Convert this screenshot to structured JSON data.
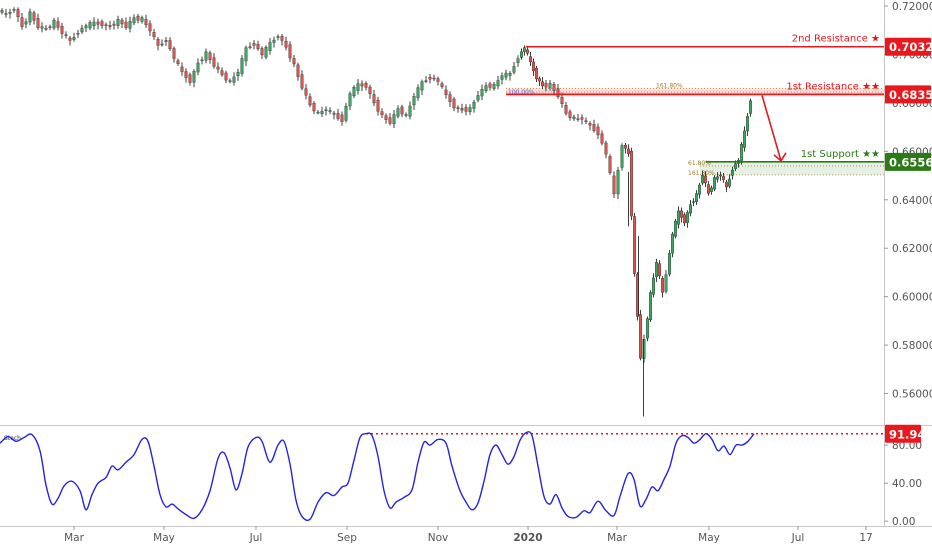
{
  "chart_data": [
    {
      "type": "candlestick",
      "symbol": "AUDUSD",
      "x_labels": [
        "Mar",
        "May",
        "Jul",
        "Sep",
        "Nov",
        "2020",
        "Mar",
        "May",
        "Jul",
        "17"
      ],
      "y_ticks": [
        0.56,
        0.58,
        0.6,
        0.62,
        0.64,
        0.66,
        0.68,
        0.7,
        0.72
      ],
      "y_tick_labels": [
        "0.56000",
        "0.58000",
        "0.60000",
        "0.62000",
        "0.64000",
        "0.66000",
        "0.68000",
        "0.70000",
        "0.72000"
      ],
      "ylim": [
        0.547,
        0.7225
      ],
      "price_path": [
        [
          0,
          0.7185
        ],
        [
          8,
          0.7165
        ],
        [
          16,
          0.719
        ],
        [
          24,
          0.7115
        ],
        [
          32,
          0.717
        ],
        [
          40,
          0.7115
        ],
        [
          48,
          0.7105
        ],
        [
          56,
          0.7135
        ],
        [
          64,
          0.709
        ],
        [
          72,
          0.7055
        ],
        [
          80,
          0.7095
        ],
        [
          88,
          0.712
        ],
        [
          96,
          0.713
        ],
        [
          104,
          0.7125
        ],
        [
          112,
          0.7115
        ],
        [
          120,
          0.714
        ],
        [
          128,
          0.7115
        ],
        [
          136,
          0.715
        ],
        [
          144,
          0.7145
        ],
        [
          152,
          0.71
        ],
        [
          160,
          0.7035
        ],
        [
          168,
          0.706
        ],
        [
          176,
          0.6985
        ],
        [
          184,
          0.6925
        ],
        [
          192,
          0.689
        ],
        [
          200,
          0.6965
        ],
        [
          208,
          0.7005
        ],
        [
          216,
          0.6955
        ],
        [
          224,
          0.6915
        ],
        [
          232,
          0.6885
        ],
        [
          240,
          0.693
        ],
        [
          248,
          0.7025
        ],
        [
          256,
          0.7045
        ],
        [
          264,
          0.7
        ],
        [
          272,
          0.7045
        ],
        [
          280,
          0.708
        ],
        [
          288,
          0.703
        ],
        [
          296,
          0.6955
        ],
        [
          304,
          0.6865
        ],
        [
          312,
          0.679
        ],
        [
          320,
          0.6755
        ],
        [
          328,
          0.6775
        ],
        [
          336,
          0.675
        ],
        [
          344,
          0.673
        ],
        [
          352,
          0.684
        ],
        [
          360,
          0.6875
        ],
        [
          368,
          0.687
        ],
        [
          376,
          0.68
        ],
        [
          384,
          0.6745
        ],
        [
          392,
          0.672
        ],
        [
          400,
          0.6775
        ],
        [
          408,
          0.6745
        ],
        [
          416,
          0.683
        ],
        [
          424,
          0.6885
        ],
        [
          432,
          0.6905
        ],
        [
          440,
          0.689
        ],
        [
          448,
          0.683
        ],
        [
          456,
          0.6785
        ],
        [
          464,
          0.677
        ],
        [
          472,
          0.6775
        ],
        [
          480,
          0.6835
        ],
        [
          488,
          0.687
        ],
        [
          496,
          0.687
        ],
        [
          504,
          0.6915
        ],
        [
          512,
          0.692
        ],
        [
          520,
          0.699
        ],
        [
          526,
          0.703
        ],
        [
          532,
          0.6965
        ],
        [
          538,
          0.6905
        ],
        [
          544,
          0.687
        ],
        [
          552,
          0.6875
        ],
        [
          560,
          0.683
        ],
        [
          568,
          0.6755
        ],
        [
          576,
          0.6735
        ],
        [
          584,
          0.6735
        ],
        [
          592,
          0.6705
        ],
        [
          600,
          0.6675
        ],
        [
          608,
          0.659
        ],
        [
          616,
          0.642
        ],
        [
          624,
          0.663
        ],
        [
          630,
          0.659
        ],
        [
          636,
          0.609
        ],
        [
          642,
          0.575
        ],
        [
          646,
          0.582
        ],
        [
          652,
          0.601
        ],
        [
          658,
          0.6145
        ],
        [
          664,
          0.6015
        ],
        [
          668,
          0.6095
        ],
        [
          674,
          0.626
        ],
        [
          680,
          0.635
        ],
        [
          686,
          0.631
        ],
        [
          692,
          0.638
        ],
        [
          698,
          0.642
        ],
        [
          704,
          0.6505
        ],
        [
          710,
          0.6425
        ],
        [
          716,
          0.6485
        ],
        [
          722,
          0.6505
        ],
        [
          728,
          0.645
        ],
        [
          734,
          0.653
        ],
        [
          740,
          0.6565
        ],
        [
          746,
          0.668
        ],
        [
          752,
          0.6815
        ]
      ],
      "levels": [
        {
          "label": "2nd Resistance ★",
          "value": 0.7032,
          "value_label": "0.70320",
          "color": "#e8181d"
        },
        {
          "label": "1st Resistance ★★",
          "value": 0.68354,
          "value_label": "0.68354",
          "color": "#e8181d"
        },
        {
          "label": "1st Support ★★",
          "value": 0.65568,
          "value_label": "0.65568",
          "color": "#2b7a16"
        }
      ],
      "fib_labels": {
        "top_resistance": "161.80%",
        "resistance_base": "100.00%",
        "support_top": "61.80%",
        "support_bottom": "161.80%"
      },
      "colors": {
        "up": "#3aa75e",
        "down": "#e0534a",
        "wick": "#2a2a2a"
      }
    },
    {
      "type": "line",
      "name": "Stoch",
      "y_ticks": [
        0,
        40,
        80
      ],
      "y_tick_labels": [
        "0.00",
        "40.00",
        "80.00"
      ],
      "ylim": [
        -4,
        98
      ],
      "current_label": "91.94",
      "reference_value": 91.94,
      "points": [
        [
          0,
          82
        ],
        [
          8,
          89
        ],
        [
          16,
          84
        ],
        [
          24,
          88
        ],
        [
          32,
          91
        ],
        [
          40,
          74
        ],
        [
          46,
          38
        ],
        [
          52,
          18
        ],
        [
          58,
          24
        ],
        [
          64,
          37
        ],
        [
          72,
          42
        ],
        [
          80,
          32
        ],
        [
          86,
          12
        ],
        [
          92,
          28
        ],
        [
          98,
          40
        ],
        [
          106,
          46
        ],
        [
          112,
          58
        ],
        [
          118,
          54
        ],
        [
          126,
          62
        ],
        [
          134,
          70
        ],
        [
          142,
          86
        ],
        [
          148,
          84
        ],
        [
          154,
          58
        ],
        [
          160,
          28
        ],
        [
          166,
          15
        ],
        [
          172,
          18
        ],
        [
          178,
          13
        ],
        [
          186,
          7
        ],
        [
          194,
          3
        ],
        [
          202,
          12
        ],
        [
          210,
          32
        ],
        [
          218,
          66
        ],
        [
          224,
          72
        ],
        [
          230,
          56
        ],
        [
          236,
          33
        ],
        [
          242,
          50
        ],
        [
          248,
          78
        ],
        [
          256,
          88
        ],
        [
          262,
          84
        ],
        [
          270,
          62
        ],
        [
          278,
          80
        ],
        [
          284,
          84
        ],
        [
          290,
          60
        ],
        [
          296,
          22
        ],
        [
          302,
          5
        ],
        [
          310,
          2
        ],
        [
          318,
          20
        ],
        [
          326,
          30
        ],
        [
          334,
          27
        ],
        [
          342,
          36
        ],
        [
          348,
          40
        ],
        [
          354,
          64
        ],
        [
          360,
          88
        ],
        [
          366,
          92
        ],
        [
          372,
          90
        ],
        [
          378,
          68
        ],
        [
          384,
          32
        ],
        [
          390,
          14
        ],
        [
          396,
          20
        ],
        [
          404,
          25
        ],
        [
          412,
          33
        ],
        [
          418,
          62
        ],
        [
          424,
          83
        ],
        [
          430,
          80
        ],
        [
          438,
          86
        ],
        [
          446,
          82
        ],
        [
          452,
          58
        ],
        [
          460,
          32
        ],
        [
          466,
          20
        ],
        [
          472,
          12
        ],
        [
          478,
          19
        ],
        [
          484,
          42
        ],
        [
          490,
          70
        ],
        [
          496,
          80
        ],
        [
          502,
          70
        ],
        [
          508,
          60
        ],
        [
          514,
          68
        ],
        [
          520,
          85
        ],
        [
          526,
          93
        ],
        [
          532,
          90
        ],
        [
          538,
          58
        ],
        [
          544,
          26
        ],
        [
          550,
          18
        ],
        [
          556,
          28
        ],
        [
          562,
          14
        ],
        [
          568,
          5
        ],
        [
          576,
          4
        ],
        [
          584,
          11
        ],
        [
          590,
          9
        ],
        [
          598,
          21
        ],
        [
          606,
          11
        ],
        [
          614,
          6
        ],
        [
          620,
          26
        ],
        [
          628,
          50
        ],
        [
          634,
          44
        ],
        [
          640,
          16
        ],
        [
          646,
          23
        ],
        [
          652,
          36
        ],
        [
          658,
          32
        ],
        [
          664,
          44
        ],
        [
          670,
          58
        ],
        [
          676,
          82
        ],
        [
          682,
          90
        ],
        [
          688,
          88
        ],
        [
          694,
          82
        ],
        [
          700,
          86
        ],
        [
          706,
          92
        ],
        [
          712,
          86
        ],
        [
          718,
          74
        ],
        [
          724,
          79
        ],
        [
          730,
          70
        ],
        [
          736,
          80
        ],
        [
          742,
          80
        ],
        [
          748,
          84
        ],
        [
          754,
          92
        ]
      ]
    }
  ],
  "x_axis_labels": [
    "Mar",
    "May",
    "Jul",
    "Sep",
    "Nov",
    "2020",
    "Mar",
    "May",
    "Jul",
    "17"
  ]
}
